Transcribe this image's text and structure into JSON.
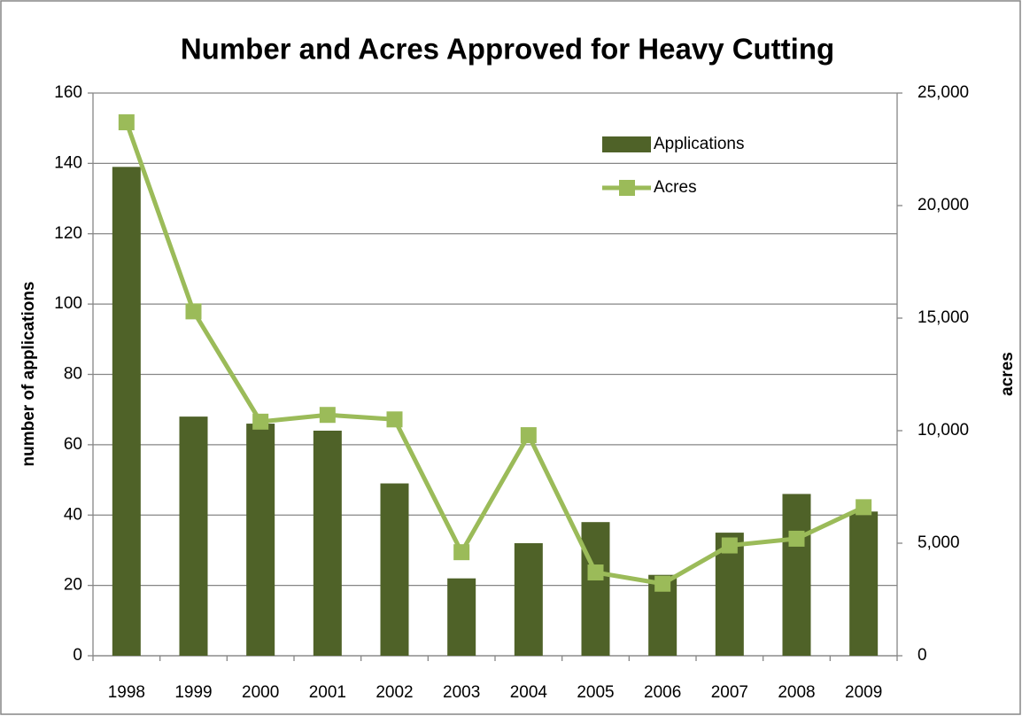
{
  "chart_data": {
    "type": "bar-line",
    "title": "Number and Acres Approved for Heavy Cutting",
    "ylabel": "number of applications",
    "y2label": "acres",
    "categories": [
      "1998",
      "1999",
      "2000",
      "2001",
      "2002",
      "2003",
      "2004",
      "2005",
      "2006",
      "2007",
      "2008",
      "2009"
    ],
    "series": [
      {
        "name": "Applications",
        "type": "bar",
        "color": "#4f6228",
        "values": [
          139,
          68,
          66,
          64,
          49,
          22,
          32,
          38,
          23,
          35,
          46,
          41
        ]
      },
      {
        "name": "Acres",
        "type": "line",
        "axis": "y2",
        "color": "#9bbb59",
        "values": [
          23700,
          15300,
          10400,
          10700,
          10500,
          4600,
          9800,
          3700,
          3200,
          4900,
          5200,
          6600
        ]
      }
    ],
    "ylim": [
      0,
      160
    ],
    "yticks": [
      0,
      20,
      40,
      60,
      80,
      100,
      120,
      140,
      160
    ],
    "y2lim": [
      0,
      25000
    ],
    "y2ticks": [
      0,
      {
        "value": 5000,
        "label": "5,000"
      },
      {
        "value": 10000,
        "label": "10,000"
      },
      {
        "value": 15000,
        "label": "15,000"
      },
      {
        "value": 20000,
        "label": "20,000"
      },
      {
        "value": 25000,
        "label": "25,000"
      }
    ],
    "grid": true,
    "legend": "upper right"
  }
}
